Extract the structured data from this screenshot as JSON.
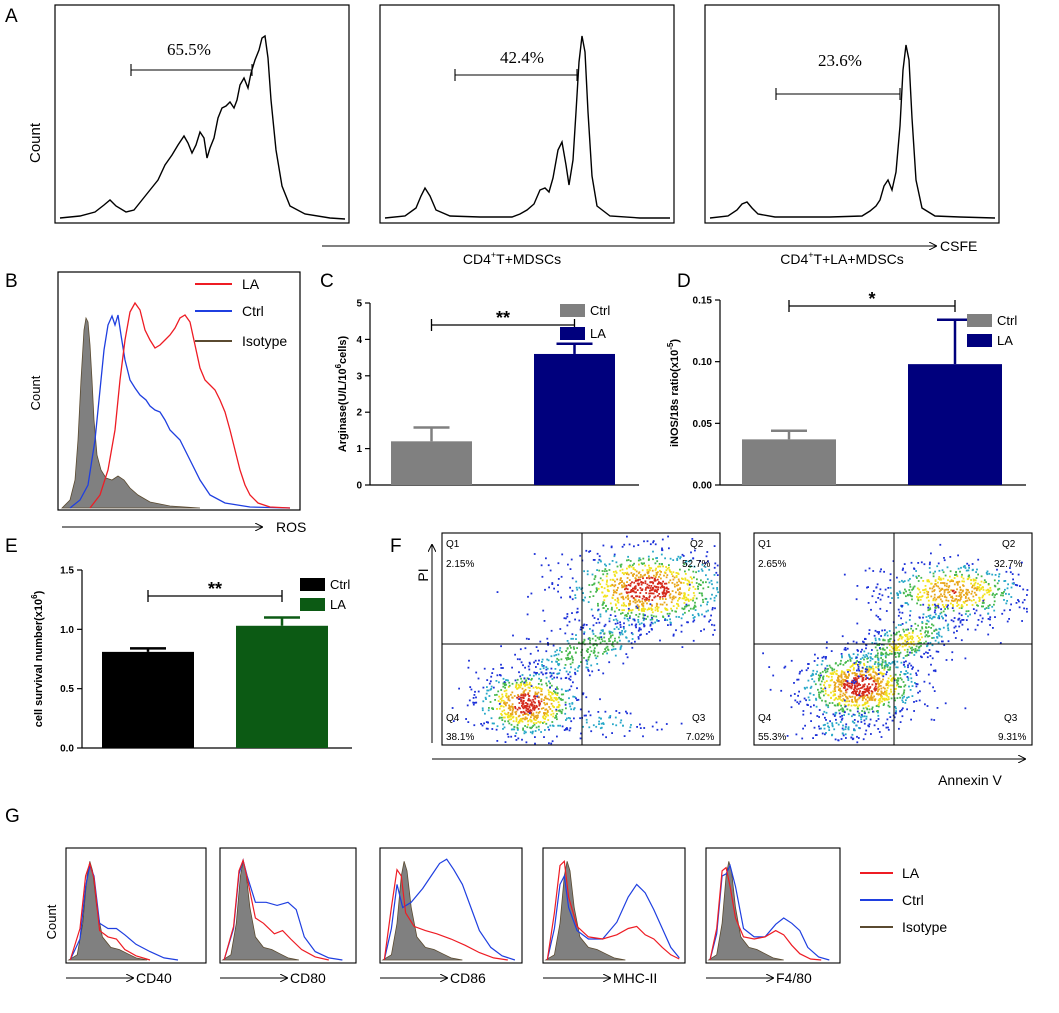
{
  "panels": {
    "A": {
      "label": "A",
      "ylabel": "Count",
      "xlabel": "CSFE",
      "gates": [
        "65.5%",
        "42.4%",
        "23.6%"
      ],
      "conditions": [
        "CD4+T+MDSCs",
        "CD4+T+LA+MDSCs"
      ],
      "conditions_display": [
        {
          "pre": "CD4",
          "sup": "+",
          "post": "T+MDSCs"
        },
        {
          "pre": "CD4",
          "sup": "+",
          "post": "T+LA+MDSCs"
        }
      ]
    },
    "B": {
      "label": "B",
      "ylabel": "Count",
      "xlabel": "ROS",
      "legend": [
        "LA",
        "Ctrl",
        "Isotype"
      ]
    },
    "C": {
      "label": "C",
      "significance": "**"
    },
    "D": {
      "label": "D",
      "significance": "*"
    },
    "E": {
      "label": "E",
      "significance": "**"
    },
    "F": {
      "label": "F",
      "ylabel": "PI",
      "xlabel": "Annexin V",
      "plots": [
        {
          "q1": "Q1",
          "q1v": "2.15%",
          "q2": "Q2",
          "q2v": "52.7%",
          "q3": "Q3",
          "q3v": "7.02%",
          "q4": "Q4",
          "q4v": "38.1%"
        },
        {
          "q1": "Q1",
          "q1v": "2.65%",
          "q2": "Q2",
          "q2v": "32.7%",
          "q3": "Q3",
          "q3v": "9.31%",
          "q4": "Q4",
          "q4v": "55.3%"
        }
      ]
    },
    "G": {
      "label": "G",
      "ylabel": "Count",
      "markers": [
        "CD40",
        "CD80",
        "CD86",
        "MHC-II",
        "F4/80"
      ],
      "legend": [
        "LA",
        "Ctrl",
        "Isotype"
      ]
    }
  },
  "colors": {
    "LA": "#ee1c24",
    "Ctrl": "#1f3fe0",
    "Isotype": "#5a4a30",
    "grayBar": "#808080",
    "navyBar": "#00007d",
    "blackBar": "#000000",
    "greenBar": "#0c5a14"
  },
  "chart_data": [
    {
      "type": "bar",
      "panel": "C",
      "ylabel": "Arginase(U/L/10^6cells)",
      "ylabel_display": {
        "pre": "Arginase(U/L/10",
        "sup": "6",
        "post": "cells)"
      },
      "ylim": [
        0,
        5
      ],
      "yticks": [
        "0",
        "1",
        "2",
        "3",
        "4",
        "5"
      ],
      "categories": [
        "Ctrl",
        "LA"
      ],
      "values": [
        1.2,
        3.6
      ],
      "errors": [
        0.38,
        0.28
      ],
      "legend": [
        "Ctrl",
        "LA"
      ]
    },
    {
      "type": "bar",
      "panel": "D",
      "ylabel": "iNOS/18s ratio(x10^-5)",
      "ylabel_display": {
        "pre": "iNOS/18s ratio(x10",
        "sup": "-5",
        "post": ")"
      },
      "ylim": [
        0,
        0.15
      ],
      "yticks": [
        "0.00",
        "0.05",
        "0.10",
        "0.15"
      ],
      "categories": [
        "Ctrl",
        "LA"
      ],
      "values": [
        0.037,
        0.098
      ],
      "errors": [
        0.007,
        0.036
      ],
      "legend": [
        "Ctrl",
        "LA"
      ]
    },
    {
      "type": "bar",
      "panel": "E",
      "ylabel": "cell survival number(x10^6)",
      "ylabel_display": {
        "pre": "cell survival number(x10",
        "sup": "6",
        "post": ")"
      },
      "ylim": [
        0,
        1.5
      ],
      "yticks": [
        "0.0",
        "0.5",
        "1.0",
        "1.5"
      ],
      "categories": [
        "Ctrl",
        "LA"
      ],
      "values": [
        0.81,
        1.03
      ],
      "errors": [
        0.03,
        0.07
      ],
      "legend": [
        "Ctrl",
        "LA"
      ]
    }
  ]
}
